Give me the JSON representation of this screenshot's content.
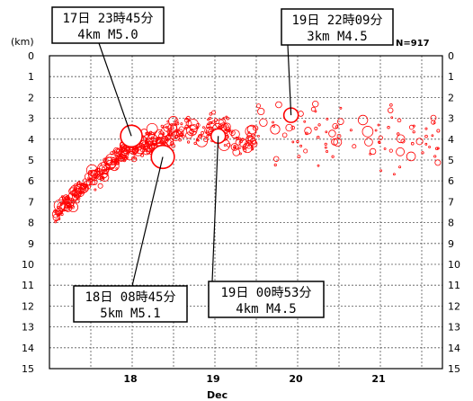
{
  "chart_data": {
    "type": "scatter",
    "ylabel": "(km)",
    "xlabel": "Dec",
    "count_label": "N=917",
    "y_reversed": true,
    "ylim": [
      0,
      15
    ],
    "yticks": [
      0,
      1,
      2,
      3,
      4,
      5,
      6,
      7,
      8,
      9,
      10,
      11,
      12,
      13,
      14,
      15
    ],
    "xlim": [
      17.0,
      21.75
    ],
    "xticks": [
      18,
      19,
      20,
      21
    ],
    "xtick_labels": [
      "18",
      "19",
      "20",
      "21"
    ],
    "grid": true,
    "marker_color": "#ff0000",
    "marker_style": "open circle, size proportional to magnitude",
    "featured_events": [
      {
        "x": 17.99,
        "depth": 4,
        "magnitude": 5.0,
        "label_line1": "17日 23時45分",
        "label_line2": "4km  M5.0"
      },
      {
        "x": 18.37,
        "depth": 5,
        "magnitude": 5.1,
        "label_line1": "18日 08時45分",
        "label_line2": "5km  M5.1"
      },
      {
        "x": 19.04,
        "depth": 4,
        "magnitude": 4.5,
        "label_line1": "19日 00時53分",
        "label_line2": "4km  M4.5"
      },
      {
        "x": 19.92,
        "depth": 3,
        "magnitude": 4.5,
        "label_line1": "19日 22時09分",
        "label_line2": "3km  M4.5"
      }
    ]
  }
}
